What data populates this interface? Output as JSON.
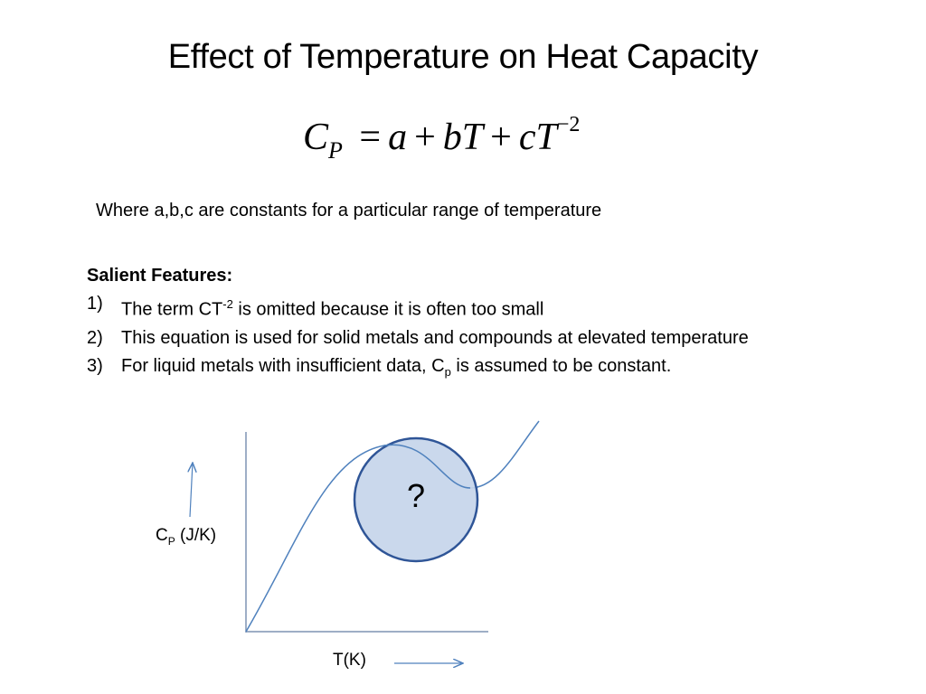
{
  "title": "Effect of Temperature on Heat Capacity",
  "equation": {
    "lhs": "C",
    "lhs_sub": "P",
    "equals": "=",
    "a": "a",
    "plus1": "+",
    "bT": "bT",
    "plus2": "+",
    "cT": "cT",
    "exp": "−2"
  },
  "where_text": "Where a,b,c are constants for a particular range of temperature",
  "features": {
    "heading": "Salient Features:",
    "items": [
      {
        "num": "1)",
        "pre": "The term CT",
        "sup": "-2",
        "post": " is omitted because it is often too small"
      },
      {
        "num": "2)",
        "text": "This equation is used for solid metals and compounds at elevated temperature"
      },
      {
        "num": "3)",
        "pre": "For liquid metals with insufficient data, C",
        "sub": "p",
        "post": " is assumed to be constant."
      }
    ]
  },
  "graph": {
    "y_label_main": "C",
    "y_label_sub": "P",
    "y_label_unit": " (J/K)",
    "x_label": "T(K)",
    "circle_text": "?",
    "colors": {
      "curve": "#4f81bd",
      "axis": "#7f93b3",
      "circle_fill": "#c6d5ea",
      "circle_stroke": "#2f5597"
    }
  }
}
